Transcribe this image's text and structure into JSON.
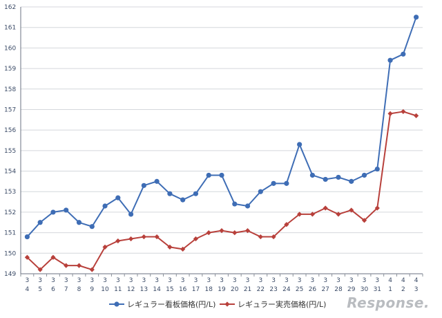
{
  "chart_data": {
    "type": "line",
    "categories": [
      [
        "3",
        "4"
      ],
      [
        "3",
        "5"
      ],
      [
        "3",
        "6"
      ],
      [
        "3",
        "7"
      ],
      [
        "3",
        "8"
      ],
      [
        "3",
        "9"
      ],
      [
        "3",
        "10"
      ],
      [
        "3",
        "11"
      ],
      [
        "3",
        "12"
      ],
      [
        "3",
        "13"
      ],
      [
        "3",
        "14"
      ],
      [
        "3",
        "15"
      ],
      [
        "3",
        "16"
      ],
      [
        "3",
        "17"
      ],
      [
        "3",
        "18"
      ],
      [
        "3",
        "19"
      ],
      [
        "3",
        "20"
      ],
      [
        "3",
        "21"
      ],
      [
        "3",
        "22"
      ],
      [
        "3",
        "23"
      ],
      [
        "3",
        "24"
      ],
      [
        "3",
        "25"
      ],
      [
        "3",
        "26"
      ],
      [
        "3",
        "27"
      ],
      [
        "3",
        "28"
      ],
      [
        "3",
        "29"
      ],
      [
        "3",
        "30"
      ],
      [
        "3",
        "31"
      ],
      [
        "4",
        "1"
      ],
      [
        "4",
        "2"
      ],
      [
        "4",
        "3"
      ]
    ],
    "series": [
      {
        "name": "レギュラー看板価格(円/L)",
        "color": "#3e6db5",
        "marker": "circle",
        "values": [
          150.8,
          151.5,
          152.0,
          152.1,
          151.5,
          151.3,
          152.3,
          152.7,
          151.9,
          153.3,
          153.5,
          152.9,
          152.6,
          152.9,
          153.8,
          153.8,
          152.4,
          152.3,
          153.0,
          153.4,
          153.4,
          155.3,
          153.8,
          153.6,
          153.7,
          153.5,
          153.8,
          154.1,
          159.4,
          159.7,
          161.5
        ]
      },
      {
        "name": "レギュラー実売価格(円/L)",
        "color": "#b8403b",
        "marker": "diamond",
        "values": [
          149.8,
          149.2,
          149.8,
          149.4,
          149.4,
          149.2,
          150.3,
          150.6,
          150.7,
          150.8,
          150.8,
          150.3,
          150.2,
          150.7,
          151.0,
          151.1,
          151.0,
          151.1,
          150.8,
          150.8,
          151.4,
          151.9,
          151.9,
          152.2,
          151.9,
          152.1,
          151.6,
          152.2,
          156.8,
          156.9,
          156.7
        ]
      }
    ],
    "yticks": [
      149,
      150,
      151,
      152,
      153,
      154,
      155,
      156,
      157,
      158,
      159,
      160,
      161,
      162
    ],
    "ylim": [
      149,
      162
    ],
    "grid": true,
    "legend": "bottom",
    "title": "",
    "xlabel": "",
    "ylabel": ""
  },
  "watermark": "Response."
}
